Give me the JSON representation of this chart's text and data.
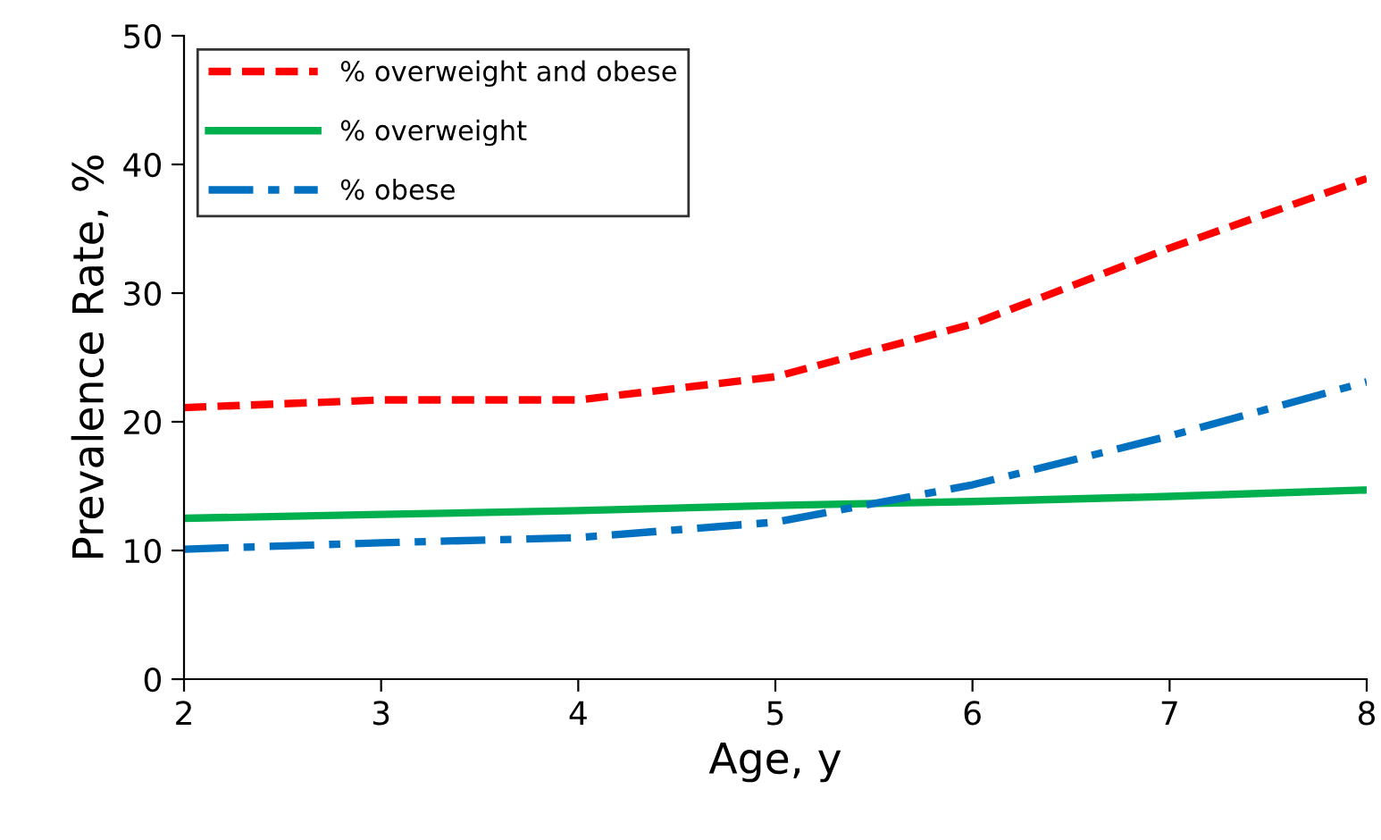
{
  "chart_data": {
    "type": "line",
    "xlabel": "Age, y",
    "ylabel": "Prevalence Rate, %",
    "x": [
      2,
      3,
      4,
      5,
      6,
      7,
      8
    ],
    "series": [
      {
        "name": "% overweight and obese",
        "color": "#ff0000",
        "line_style": "dashed",
        "values": [
          21.1,
          21.7,
          21.7,
          23.5,
          27.6,
          33.5,
          38.9
        ]
      },
      {
        "name": "% overweight",
        "color": "#00b04f",
        "line_style": "solid",
        "values": [
          12.5,
          12.8,
          13.1,
          13.5,
          13.8,
          14.2,
          14.7
        ]
      },
      {
        "name": "% obese",
        "color": "#0070c0",
        "line_style": "dashdot",
        "values": [
          10.1,
          10.6,
          11.0,
          12.2,
          15.1,
          18.9,
          23.1
        ]
      }
    ],
    "xlim": [
      2,
      8
    ],
    "xticks": [
      2,
      3,
      4,
      5,
      6,
      7,
      8
    ],
    "ylim": [
      0,
      50
    ],
    "yticks": [
      0,
      10,
      20,
      30,
      40,
      50
    ],
    "grid": false,
    "legend": "top left",
    "marker": "none"
  }
}
